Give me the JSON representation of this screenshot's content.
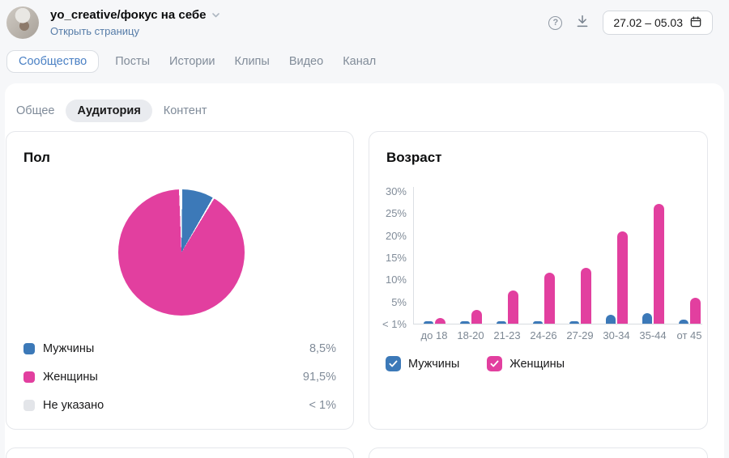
{
  "header": {
    "community_name": "yo_creative/фокус на себе",
    "open_page_link": "Открыть страницу",
    "date_range": "27.02 – 05.03",
    "help_glyph": "?"
  },
  "main_tabs": [
    {
      "label": "Сообщество",
      "slug": "community",
      "active": true
    },
    {
      "label": "Посты",
      "slug": "posts",
      "active": false
    },
    {
      "label": "Истории",
      "slug": "stories",
      "active": false
    },
    {
      "label": "Клипы",
      "slug": "clips",
      "active": false
    },
    {
      "label": "Видео",
      "slug": "video",
      "active": false
    },
    {
      "label": "Канал",
      "slug": "channel",
      "active": false
    }
  ],
  "sub_tabs": [
    {
      "label": "Общее",
      "slug": "general",
      "active": false
    },
    {
      "label": "Аудитория",
      "slug": "audience",
      "active": true
    },
    {
      "label": "Контент",
      "slug": "content",
      "active": false
    }
  ],
  "gender_card": {
    "title": "Пол",
    "legend": [
      {
        "label": "Мужчины",
        "value": "8,5%",
        "color": "#3c79b8"
      },
      {
        "label": "Женщины",
        "value": "91,5%",
        "color": "#e23f9f"
      },
      {
        "label": "Не указано",
        "value": "< 1%",
        "color": "#e3e5e9"
      }
    ]
  },
  "age_card": {
    "title": "Возраст",
    "legend": [
      {
        "label": "Мужчины",
        "color": "#3c79b8",
        "checked": true
      },
      {
        "label": "Женщины",
        "color": "#e23f9f",
        "checked": true
      }
    ]
  },
  "chart_data": [
    {
      "type": "pie",
      "title": "Пол",
      "labels": [
        "Мужчины",
        "Женщины",
        "Не указано"
      ],
      "values": [
        8.5,
        91.5,
        0.4
      ],
      "display_values": [
        "8,5%",
        "91,5%",
        "< 1%"
      ],
      "colors": [
        "#3c79b8",
        "#e23f9f",
        "#e3e5e9"
      ],
      "start_angle_deg": 0,
      "legend_position": "bottom"
    },
    {
      "type": "bar",
      "title": "Возраст",
      "categories": [
        "до 18",
        "18-20",
        "21-23",
        "24-26",
        "27-29",
        "30-34",
        "35-44",
        "от 45"
      ],
      "series": [
        {
          "name": "Мужчины",
          "color": "#3c79b8",
          "values": [
            0.3,
            0.4,
            0.5,
            0.6,
            0.6,
            2.0,
            2.3,
            0.9
          ]
        },
        {
          "name": "Женщины",
          "color": "#e23f9f",
          "values": [
            1.2,
            3.1,
            7.5,
            11.5,
            12.6,
            20.8,
            27.0,
            5.9
          ]
        }
      ],
      "ylim": [
        0,
        30
      ],
      "yticks": [
        {
          "label": "30%",
          "value": 30
        },
        {
          "label": "25%",
          "value": 25
        },
        {
          "label": "20%",
          "value": 20
        },
        {
          "label": "15%",
          "value": 15
        },
        {
          "label": "10%",
          "value": 10
        },
        {
          "label": "5%",
          "value": 5
        },
        {
          "label": "< 1%",
          "value": 0
        }
      ],
      "grid": false,
      "legend_position": "bottom"
    }
  ],
  "colors": {
    "accent_blue": "#4a80c4",
    "male_blue": "#3c79b8",
    "female_pink": "#e23f9f",
    "unspecified_gray": "#e3e5e9",
    "axis_gray": "#dcdfe4",
    "muted_text": "#818c99"
  }
}
